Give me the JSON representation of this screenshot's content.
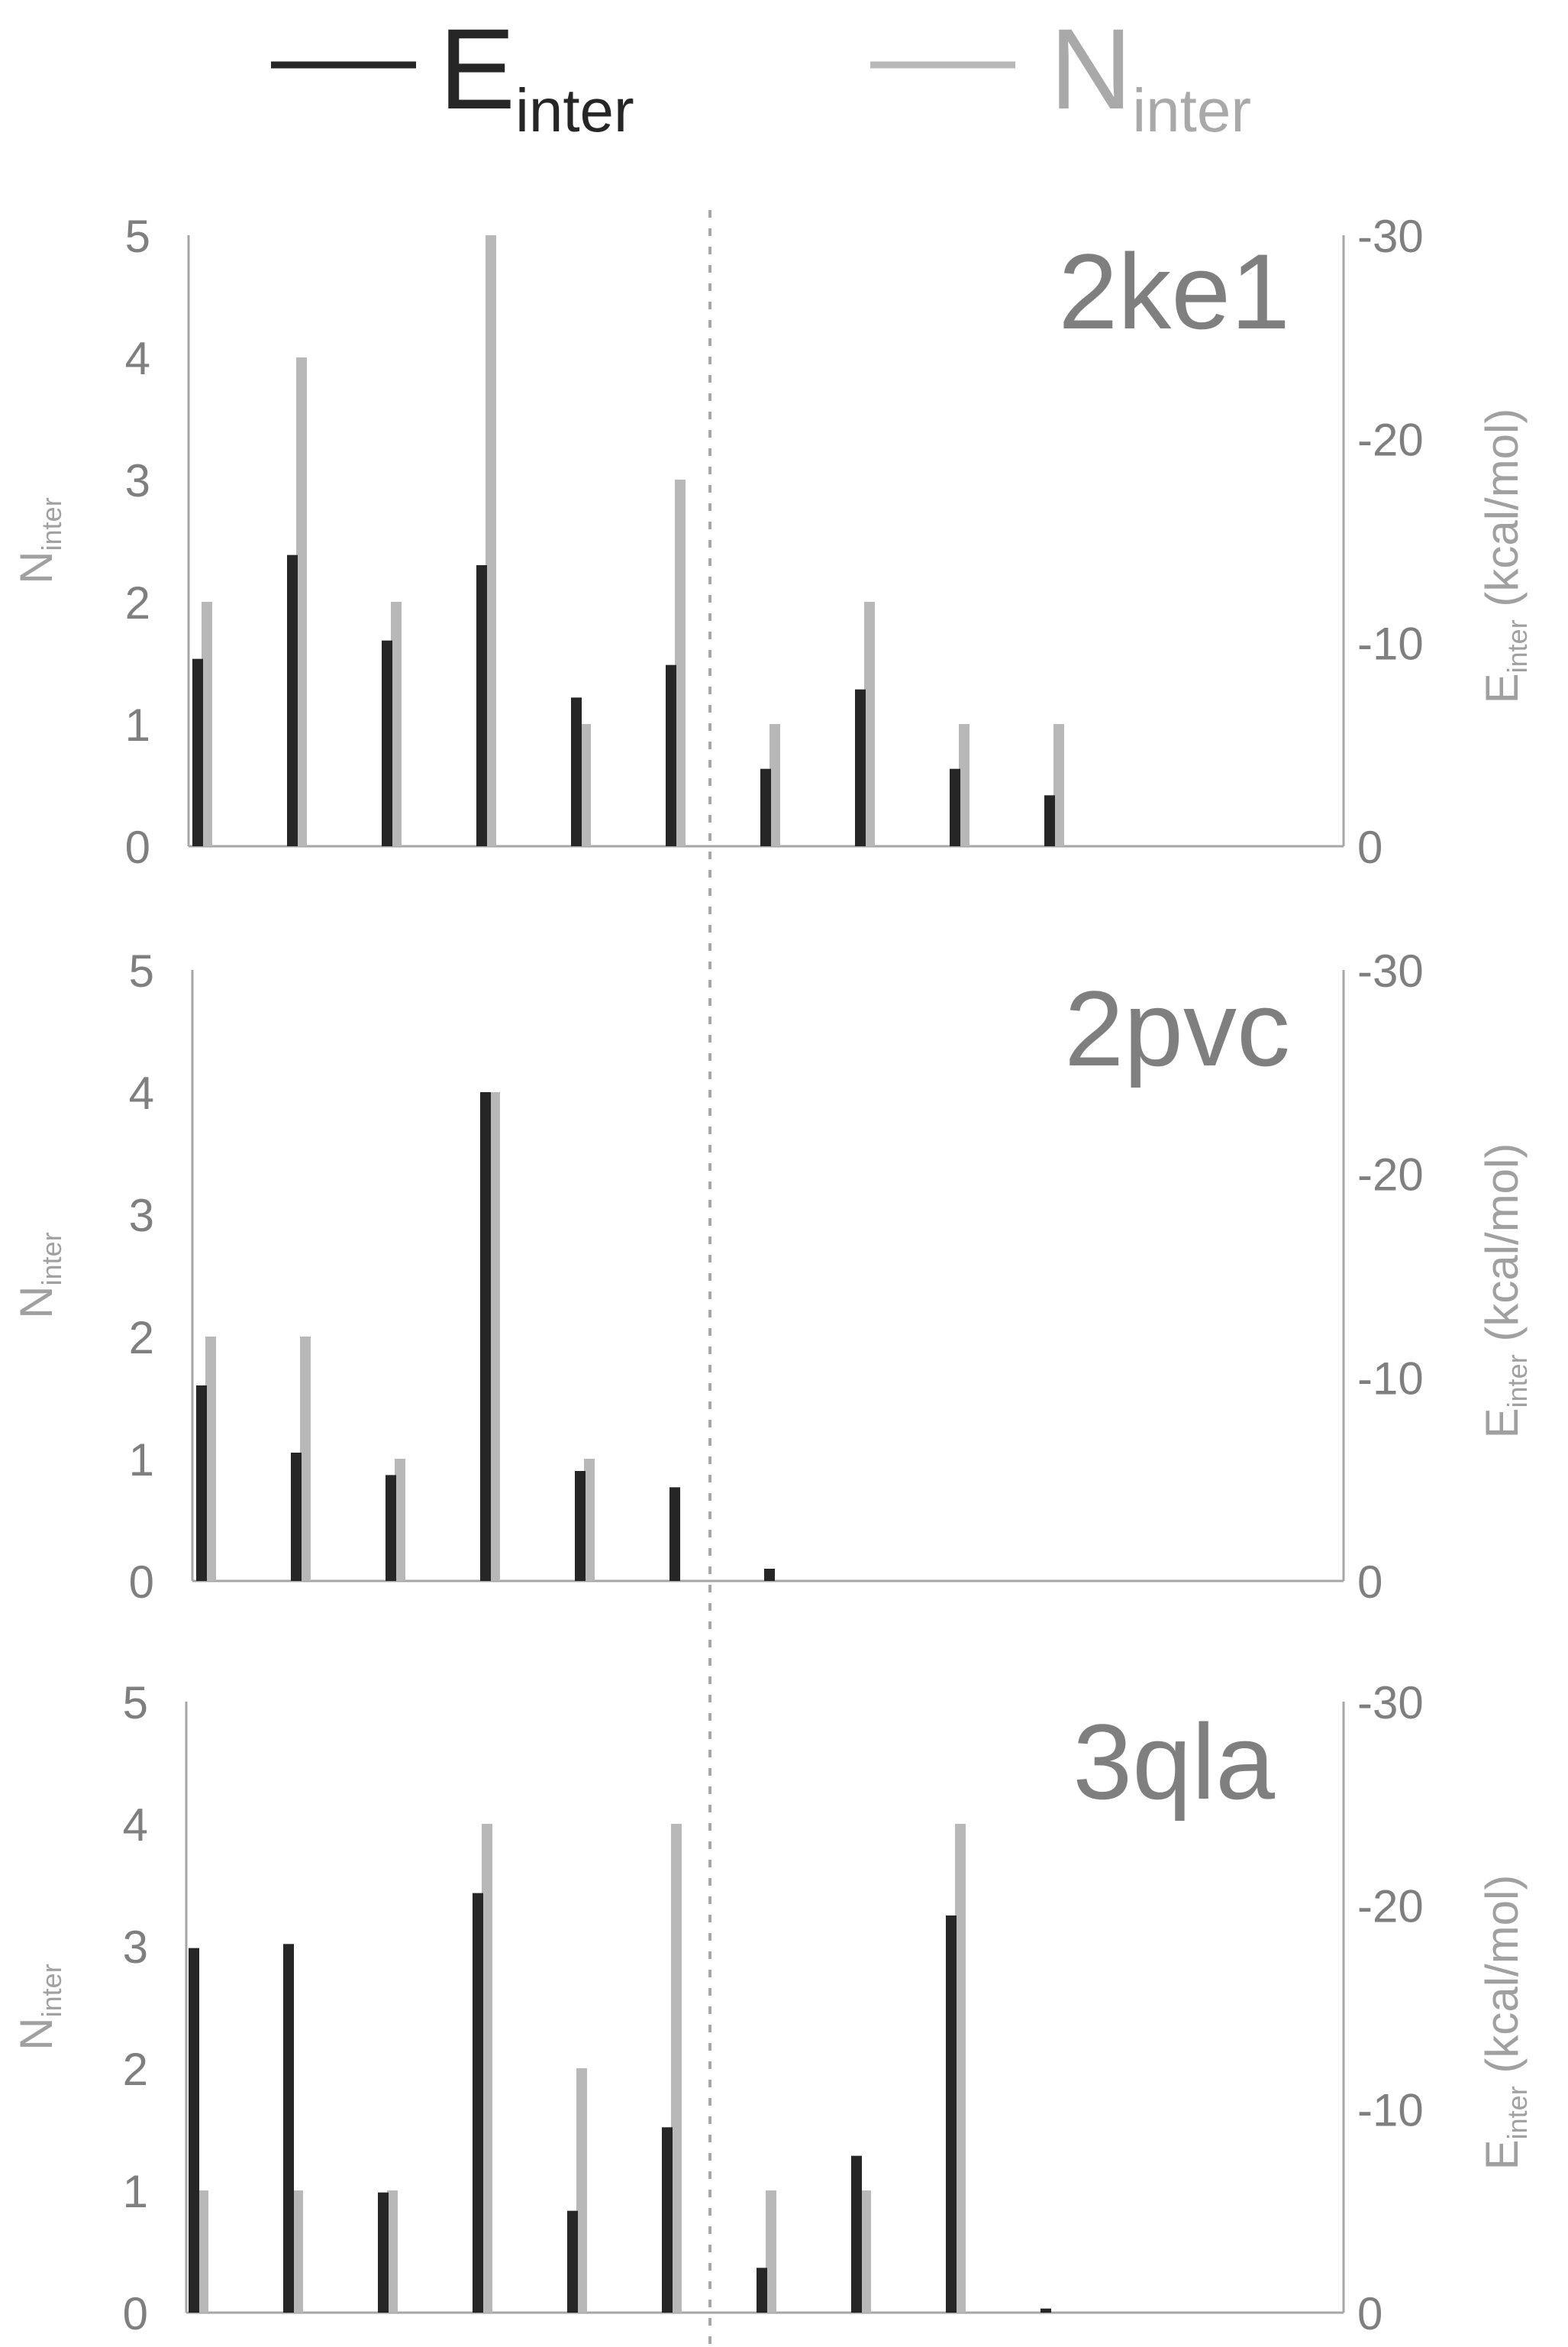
{
  "legend": {
    "items": [
      {
        "main": "E",
        "sub": "inter",
        "color": "#262626"
      },
      {
        "main": "N",
        "sub": "inter",
        "color": "#b8b8b8"
      }
    ]
  },
  "colors": {
    "e_inter": "#262626",
    "n_inter": "#b8b8b8",
    "text": "#7f7f7f",
    "axis": "#a6a6a6"
  },
  "chart_data": [
    {
      "type": "bar",
      "title": "2ke1",
      "left_axis": {
        "label_main": "N",
        "label_sub": "inter",
        "ylim": [
          0,
          5
        ],
        "ticks": [
          "0",
          "1",
          "2",
          "3",
          "4",
          "5"
        ]
      },
      "right_axis": {
        "label_main": "E",
        "label_sub": "inter",
        "label_unit": " (kcal/mol)",
        "ylim": [
          0,
          -30
        ],
        "ticks": [
          "0",
          "-10",
          "-20",
          "-30"
        ]
      },
      "series": [
        {
          "name": "Einter",
          "axis": "right",
          "values": [
            -9.2,
            -14.3,
            -10.1,
            -13.8,
            -7.3,
            -8.9,
            -3.8,
            -7.7,
            -3.8,
            -2.5
          ]
        },
        {
          "name": "Ninter",
          "axis": "left",
          "values": [
            2,
            4,
            2,
            5,
            1,
            3,
            1,
            2,
            1,
            1
          ]
        }
      ]
    },
    {
      "type": "bar",
      "title": "2pvc",
      "left_axis": {
        "label_main": "N",
        "label_sub": "inter",
        "ylim": [
          0,
          5
        ],
        "ticks": [
          "0",
          "1",
          "2",
          "3",
          "4",
          "5"
        ]
      },
      "right_axis": {
        "label_main": "E",
        "label_sub": "inter",
        "label_unit": " (kcal/mol)",
        "ylim": [
          0,
          -30
        ],
        "ticks": [
          "0",
          "-10",
          "-20",
          "-30"
        ]
      },
      "series": [
        {
          "name": "Einter",
          "axis": "right",
          "values": [
            -9.6,
            -6.3,
            -5.2,
            -24,
            -5.4,
            -4.6,
            -0.6
          ]
        },
        {
          "name": "Ninter",
          "axis": "left",
          "values": [
            2,
            2,
            1,
            4,
            1,
            0,
            0
          ]
        }
      ]
    },
    {
      "type": "bar",
      "title": "3qla",
      "left_axis": {
        "label_main": "N",
        "label_sub": "inter",
        "ylim": [
          0,
          5
        ],
        "ticks": [
          "0",
          "1",
          "2",
          "3",
          "4",
          "5"
        ]
      },
      "right_axis": {
        "label_main": "E",
        "label_sub": "inter",
        "label_unit": " (kcal/mol)",
        "ylim": [
          0,
          -30
        ],
        "ticks": [
          "0",
          "-10",
          "-20",
          "-30"
        ]
      },
      "series": [
        {
          "name": "Einter",
          "axis": "right",
          "values": [
            -17.9,
            -18.1,
            -5.9,
            -20.6,
            -5,
            -9.1,
            -2.2,
            -7.7,
            -19.5,
            -0.2
          ]
        },
        {
          "name": "Ninter",
          "axis": "left",
          "values": [
            1,
            1,
            1,
            4,
            2,
            4,
            1,
            1,
            4,
            0
          ]
        }
      ]
    }
  ]
}
